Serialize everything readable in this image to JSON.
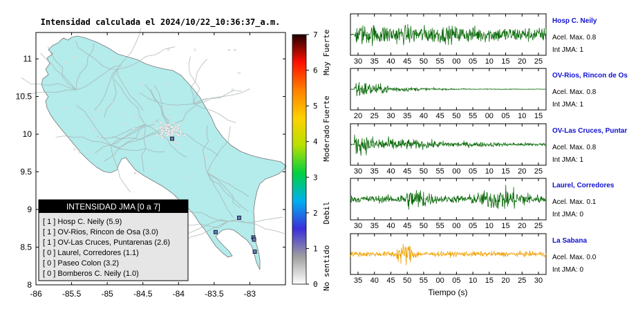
{
  "map": {
    "title": "Intensidad calculada el 2024/10/22_10:36:37_a.m.",
    "x_ticks": [
      "-86",
      "-85.5",
      "-85",
      "-84.5",
      "-84",
      "-83.5",
      "-83"
    ],
    "y_ticks": [
      "11",
      "10.5",
      "10",
      "9.5",
      "9",
      "8.5",
      "8"
    ],
    "xlim": [
      -86,
      -82.5
    ],
    "ylim": [
      8,
      11.35
    ],
    "land_color": "#b4ebeb",
    "stations": [
      {
        "name": "Hosp C. Neily",
        "lon": -82.95,
        "lat": 8.63
      },
      {
        "name": "OV-Rios, Rincon de Osa",
        "lon": -83.48,
        "lat": 8.7
      },
      {
        "name": "OV-Las Cruces, Puntarenas",
        "lon": -83.15,
        "lat": 8.89
      },
      {
        "name": "Laurel, Corredores",
        "lon": -82.93,
        "lat": 8.44
      },
      {
        "name": "Paseo Colon",
        "lon": -84.09,
        "lat": 9.94
      },
      {
        "name": "Bomberos C. Neily",
        "lon": -82.94,
        "lat": 8.6
      }
    ]
  },
  "legend": {
    "header": "INTENSIDAD JMA [0 a 7]",
    "items": [
      "[ 1 ]  Hosp C. Neily (5.9)",
      "[ 1 ]  OV-Rios, Rincon de Osa (3.0)",
      "[ 1 ]  OV-Las Cruces, Puntarenas (2.6)",
      "[ 0 ]  Laurel, Corredores (1.1)",
      "[ 0 ]  Paseo Colon (3.2)",
      "[ 0 ]  Bomberos C. Neily (1.0)"
    ]
  },
  "colorbar": {
    "ticks": [
      "0",
      "1",
      "2",
      "3",
      "4",
      "5",
      "6",
      "7"
    ],
    "labels": [
      "No sentido",
      "Debil",
      "Moderado",
      "Fuerte",
      "Muy Fuerte"
    ],
    "label_values": [
      0.45,
      2,
      3.95,
      4.9,
      6.5
    ],
    "stops": [
      "#ffffff",
      "#9e9e9e",
      "#3a2fd8",
      "#00b0f0",
      "#00d040",
      "#b8e000",
      "#ffd000",
      "#ff8000",
      "#ff1000",
      "#200000"
    ]
  },
  "chart_data": [
    {
      "type": "line",
      "title": "Hosp C. Neily",
      "lines": [
        "Acel. Max. 0.8",
        "Int JMA: 1"
      ],
      "color": "#0a6a0a",
      "x_ticks": [
        "30",
        "35",
        "40",
        "45",
        "50",
        "55",
        "00",
        "05",
        "10",
        "15",
        "20",
        "25"
      ],
      "envelope": {
        "type": "onset",
        "onset": 0.02,
        "peak": 1.0,
        "decay": 0.9,
        "floor": 0.45
      }
    },
    {
      "type": "line",
      "title": "OV-Rios, Rincon de Os",
      "lines": [
        "Acel. Max. 0.8",
        "Int JMA: 1"
      ],
      "color": "#0a6a0a",
      "x_ticks": [
        "20",
        "25",
        "30",
        "35",
        "40",
        "45",
        "50",
        "55",
        "00",
        "05",
        "10",
        "15"
      ],
      "envelope": {
        "type": "onset",
        "onset": 0.02,
        "peak": 1.0,
        "decay": 6.0,
        "floor": 0.02
      }
    },
    {
      "type": "line",
      "title": "OV-Las Cruces, Puntar",
      "lines": [
        "Acel. Max. 0.8",
        "Int JMA: 1"
      ],
      "color": "#0a6a0a",
      "x_ticks": [
        "30",
        "35",
        "40",
        "45",
        "50",
        "55",
        "00",
        "05",
        "10",
        "15",
        "20",
        "25"
      ],
      "envelope": {
        "type": "onset",
        "onset": 0.02,
        "peak": 1.0,
        "decay": 3.0,
        "floor": 0.1
      }
    },
    {
      "type": "line",
      "title": "Laurel, Corredores",
      "lines": [
        "Acel. Max. 0.1",
        "Int JMA: 0"
      ],
      "color": "#0a6a0a",
      "x_ticks": [
        "30",
        "35",
        "40",
        "45",
        "50",
        "55",
        "00",
        "05",
        "10",
        "15",
        "20",
        "25"
      ],
      "envelope": {
        "type": "bursts",
        "floor": 0.35,
        "bursts": [
          [
            0.34,
            0.06,
            1.0
          ],
          [
            0.78,
            0.12,
            0.8
          ]
        ]
      }
    },
    {
      "type": "line",
      "title": "La Sabana",
      "lines": [
        "Acel. Max. 0.0",
        "Int JMA: 0"
      ],
      "color": "#f0a000",
      "x_ticks": [
        "35",
        "40",
        "45",
        "50",
        "55",
        "00",
        "05",
        "10",
        "15",
        "20",
        "25",
        "30"
      ],
      "xlabel": "Tiempo (s)",
      "envelope": {
        "type": "bursts",
        "floor": 0.25,
        "bursts": [
          [
            0.28,
            0.04,
            1.2
          ]
        ]
      }
    }
  ]
}
